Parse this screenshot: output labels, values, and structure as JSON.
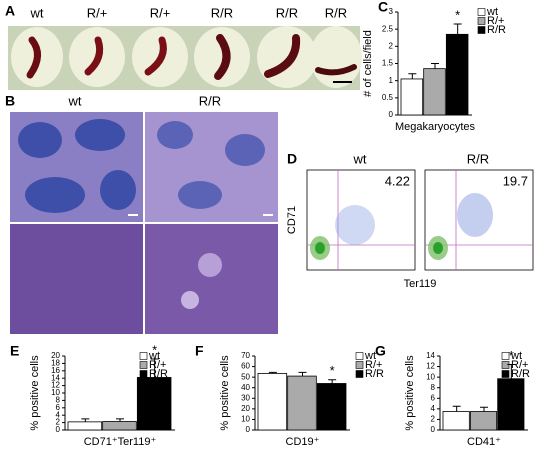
{
  "panel_a": {
    "label": "A",
    "samples": [
      "wt",
      "R/+",
      "R/+",
      "R/R",
      "R/R",
      "R/R"
    ]
  },
  "panel_b": {
    "label": "B",
    "columns": [
      "wt",
      "R/R"
    ]
  },
  "panel_d": {
    "label": "D",
    "columns": [
      "wt",
      "R/R"
    ],
    "percentages": [
      4.22,
      19.7
    ],
    "y_axis_label": "CD71",
    "x_axis_label": "Ter119"
  },
  "chart_data": [
    {
      "type": "bar",
      "label": "C",
      "y_axis_label": "# of cells/field",
      "x_axis_label": "Megakaryocytes",
      "categories": [
        "wt",
        "R/+",
        "R/R"
      ],
      "values": [
        1.05,
        1.35,
        2.35
      ],
      "errors": [
        0.15,
        0.15,
        0.3
      ],
      "colors": [
        "#ffffff",
        "#aaaaaa",
        "#000000"
      ],
      "annotation": "*",
      "ylim": [
        0,
        3
      ],
      "yticks": [
        0,
        0.5,
        1,
        1.5,
        2,
        2.5,
        3
      ]
    },
    {
      "type": "bar",
      "label": "E",
      "y_axis_label": "% positive cells",
      "x_axis_label": "CD71⁺Ter119⁺",
      "categories": [
        "wt",
        "R/+",
        "R/R"
      ],
      "values": [
        2.2,
        2.3,
        14.2
      ],
      "errors": [
        0.8,
        0.7,
        5
      ],
      "colors": [
        "#ffffff",
        "#aaaaaa",
        "#000000"
      ],
      "annotation": "*",
      "ylim": [
        0,
        20
      ],
      "yticks": [
        0,
        2,
        4,
        6,
        8,
        10,
        12,
        14,
        16,
        18,
        20
      ]
    },
    {
      "type": "bar",
      "label": "F",
      "y_axis_label": "% positive cells",
      "x_axis_label": "CD19⁺",
      "categories": [
        "wt",
        "R/+",
        "R/R"
      ],
      "values": [
        53.5,
        51,
        44
      ],
      "errors": [
        1,
        3.5,
        3.5
      ],
      "colors": [
        "#ffffff",
        "#aaaaaa",
        "#000000"
      ],
      "annotation": "*",
      "ylim": [
        0,
        70
      ],
      "yticks": [
        0,
        10,
        20,
        30,
        40,
        50,
        60,
        70
      ]
    },
    {
      "type": "bar",
      "label": "G",
      "y_axis_label": "% positive cells",
      "x_axis_label": "CD41⁺",
      "categories": [
        "wt",
        "R/+",
        "R/R"
      ],
      "values": [
        3.5,
        3.5,
        9.7
      ],
      "errors": [
        1,
        0.8,
        2.7
      ],
      "colors": [
        "#ffffff",
        "#aaaaaa",
        "#000000"
      ],
      "annotation": "*",
      "ylim": [
        0,
        14
      ],
      "yticks": [
        0,
        2,
        4,
        6,
        8,
        10,
        12,
        14
      ]
    }
  ]
}
